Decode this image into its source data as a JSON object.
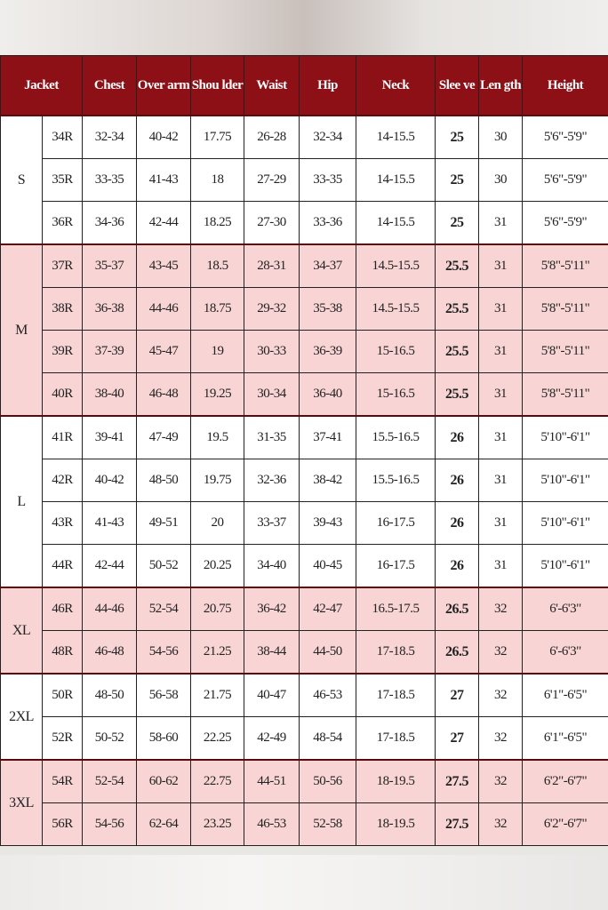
{
  "headers": [
    "Jacket",
    "Chest",
    "Over arm",
    "Shou lder",
    "Waist",
    "Hip",
    "Neck",
    "Slee ve",
    "Len gth",
    "Height"
  ],
  "colors": {
    "header_bg": "#8c1016",
    "pink_row": "#f8d4d4",
    "white_row": "#ffffff"
  },
  "groups": [
    {
      "size": "S",
      "shade": "white",
      "rows": [
        [
          "34R",
          "32-34",
          "40-42",
          "17.75",
          "26-28",
          "32-34",
          "14-15.5",
          "25",
          "30",
          "5'6\"-5'9\""
        ],
        [
          "35R",
          "33-35",
          "41-43",
          "18",
          "27-29",
          "33-35",
          "14-15.5",
          "25",
          "30",
          "5'6\"-5'9\""
        ],
        [
          "36R",
          "34-36",
          "42-44",
          "18.25",
          "27-30",
          "33-36",
          "14-15.5",
          "25",
          "31",
          "5'6\"-5'9\""
        ]
      ]
    },
    {
      "size": "M",
      "shade": "pink",
      "rows": [
        [
          "37R",
          "35-37",
          "43-45",
          "18.5",
          "28-31",
          "34-37",
          "14.5-15.5",
          "25.5",
          "31",
          "5'8\"-5'11\""
        ],
        [
          "38R",
          "36-38",
          "44-46",
          "18.75",
          "29-32",
          "35-38",
          "14.5-15.5",
          "25.5",
          "31",
          "5'8\"-5'11\""
        ],
        [
          "39R",
          "37-39",
          "45-47",
          "19",
          "30-33",
          "36-39",
          "15-16.5",
          "25.5",
          "31",
          "5'8\"-5'11\""
        ],
        [
          "40R",
          "38-40",
          "46-48",
          "19.25",
          "30-34",
          "36-40",
          "15-16.5",
          "25.5",
          "31",
          "5'8\"-5'11\""
        ]
      ]
    },
    {
      "size": "L",
      "shade": "white",
      "rows": [
        [
          "41R",
          "39-41",
          "47-49",
          "19.5",
          "31-35",
          "37-41",
          "15.5-16.5",
          "26",
          "31",
          "5'10\"-6'1\""
        ],
        [
          "42R",
          "40-42",
          "48-50",
          "19.75",
          "32-36",
          "38-42",
          "15.5-16.5",
          "26",
          "31",
          "5'10\"-6'1\""
        ],
        [
          "43R",
          "41-43",
          "49-51",
          "20",
          "33-37",
          "39-43",
          "16-17.5",
          "26",
          "31",
          "5'10\"-6'1\""
        ],
        [
          "44R",
          "42-44",
          "50-52",
          "20.25",
          "34-40",
          "40-45",
          "16-17.5",
          "26",
          "31",
          "5'10\"-6'1\""
        ]
      ]
    },
    {
      "size": "XL",
      "shade": "pink",
      "rows": [
        [
          "46R",
          "44-46",
          "52-54",
          "20.75",
          "36-42",
          "42-47",
          "16.5-17.5",
          "26.5",
          "32",
          "6'-6'3\""
        ],
        [
          "48R",
          "46-48",
          "54-56",
          "21.25",
          "38-44",
          "44-50",
          "17-18.5",
          "26.5",
          "32",
          "6'-6'3\""
        ]
      ]
    },
    {
      "size": "2XL",
      "shade": "white",
      "rows": [
        [
          "50R",
          "48-50",
          "56-58",
          "21.75",
          "40-47",
          "46-53",
          "17-18.5",
          "27",
          "32",
          "6'1\"-6'5\""
        ],
        [
          "52R",
          "50-52",
          "58-60",
          "22.25",
          "42-49",
          "48-54",
          "17-18.5",
          "27",
          "32",
          "6'1\"-6'5\""
        ]
      ]
    },
    {
      "size": "3XL",
      "shade": "pink",
      "rows": [
        [
          "54R",
          "52-54",
          "60-62",
          "22.75",
          "44-51",
          "50-56",
          "18-19.5",
          "27.5",
          "32",
          "6'2\"-6'7\""
        ],
        [
          "56R",
          "54-56",
          "62-64",
          "23.25",
          "46-53",
          "52-58",
          "18-19.5",
          "27.5",
          "32",
          "6'2\"-6'7\""
        ]
      ]
    }
  ]
}
